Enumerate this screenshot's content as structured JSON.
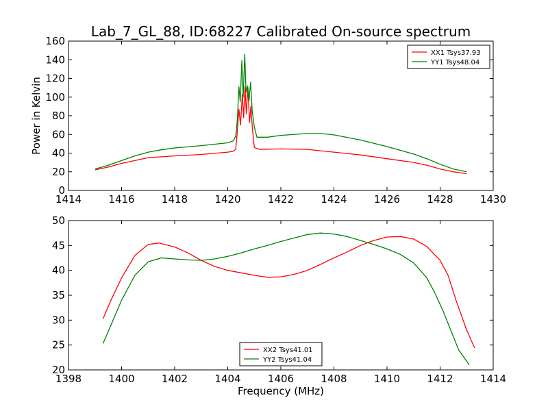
{
  "title": "Lab_7_GL_88, ID:68227 Calibrated On-source spectrum",
  "chart_data": [
    {
      "type": "line",
      "xlabel": "",
      "ylabel": "Power in Kelvin",
      "xlim": [
        1414,
        1430
      ],
      "ylim": [
        0,
        160
      ],
      "xticks": [
        1414,
        1416,
        1418,
        1420,
        1422,
        1424,
        1426,
        1428,
        1430
      ],
      "yticks": [
        0,
        20,
        40,
        60,
        80,
        100,
        120,
        140,
        160
      ],
      "legend_position": "top-right",
      "series": [
        {
          "name": "XX1 Tsys37.93",
          "color": "#ff0000",
          "points": [
            [
              1415,
              22
            ],
            [
              1415.5,
              25
            ],
            [
              1416,
              29
            ],
            [
              1416.5,
              32
            ],
            [
              1417,
              35
            ],
            [
              1417.5,
              36
            ],
            [
              1418,
              37
            ],
            [
              1419,
              38.5
            ],
            [
              1420,
              41
            ],
            [
              1420.2,
              42
            ],
            [
              1420.3,
              44
            ],
            [
              1420.35,
              60
            ],
            [
              1420.42,
              87
            ],
            [
              1420.48,
              70
            ],
            [
              1420.55,
              103
            ],
            [
              1420.6,
              78
            ],
            [
              1420.65,
              111
            ],
            [
              1420.7,
              82
            ],
            [
              1420.76,
              110
            ],
            [
              1420.82,
              73
            ],
            [
              1420.87,
              90
            ],
            [
              1420.93,
              66
            ],
            [
              1421,
              46
            ],
            [
              1421.2,
              44
            ],
            [
              1422,
              44.5
            ],
            [
              1423,
              44
            ],
            [
              1424,
              41
            ],
            [
              1425,
              38
            ],
            [
              1426,
              34
            ],
            [
              1427,
              30
            ],
            [
              1427.5,
              27
            ],
            [
              1428,
              23
            ],
            [
              1428.5,
              20
            ],
            [
              1429,
              18
            ]
          ]
        },
        {
          "name": "YY1 Tsys48.04",
          "color": "#008000",
          "points": [
            [
              1415,
              23
            ],
            [
              1415.5,
              27
            ],
            [
              1416,
              32
            ],
            [
              1416.5,
              37
            ],
            [
              1417,
              41
            ],
            [
              1417.5,
              43.5
            ],
            [
              1418,
              45.5
            ],
            [
              1419,
              48
            ],
            [
              1420,
              51
            ],
            [
              1420.2,
              53
            ],
            [
              1420.3,
              58
            ],
            [
              1420.36,
              75
            ],
            [
              1420.42,
              111
            ],
            [
              1420.47,
              95
            ],
            [
              1420.53,
              139
            ],
            [
              1420.58,
              100
            ],
            [
              1420.64,
              146
            ],
            [
              1420.69,
              105
            ],
            [
              1420.75,
              112
            ],
            [
              1420.8,
              96
            ],
            [
              1420.86,
              116
            ],
            [
              1420.92,
              85
            ],
            [
              1421,
              68
            ],
            [
              1421.1,
              57
            ],
            [
              1421.5,
              57
            ],
            [
              1422,
              59
            ],
            [
              1423,
              61
            ],
            [
              1423.5,
              61
            ],
            [
              1424,
              59.5
            ],
            [
              1425,
              54
            ],
            [
              1426,
              47
            ],
            [
              1427,
              39
            ],
            [
              1427.5,
              34
            ],
            [
              1428,
              28
            ],
            [
              1428.5,
              23
            ],
            [
              1429,
              20
            ]
          ]
        }
      ]
    },
    {
      "type": "line",
      "xlabel": "Frequency (MHz)",
      "ylabel": "",
      "xlim": [
        1398,
        1414
      ],
      "ylim": [
        20,
        50
      ],
      "xticks": [
        1398,
        1400,
        1402,
        1404,
        1406,
        1408,
        1410,
        1412,
        1414
      ],
      "yticks": [
        20,
        25,
        30,
        35,
        40,
        45,
        50
      ],
      "legend_position": "bottom-center",
      "series": [
        {
          "name": "XX2 Tsys41.01",
          "color": "#ff0000",
          "points": [
            [
              1399.3,
              30.3
            ],
            [
              1399.6,
              34
            ],
            [
              1400,
              38.5
            ],
            [
              1400.5,
              43
            ],
            [
              1401,
              45.2
            ],
            [
              1401.4,
              45.5
            ],
            [
              1402,
              44.7
            ],
            [
              1402.5,
              43.5
            ],
            [
              1403,
              42
            ],
            [
              1403.5,
              40.8
            ],
            [
              1404,
              40
            ],
            [
              1404.5,
              39.5
            ],
            [
              1405,
              39
            ],
            [
              1405.5,
              38.6
            ],
            [
              1406,
              38.7
            ],
            [
              1406.5,
              39.2
            ],
            [
              1407,
              40
            ],
            [
              1407.5,
              41.2
            ],
            [
              1408,
              42.5
            ],
            [
              1408.5,
              43.7
            ],
            [
              1409,
              45
            ],
            [
              1409.5,
              46
            ],
            [
              1410,
              46.7
            ],
            [
              1410.5,
              46.8
            ],
            [
              1411,
              46.3
            ],
            [
              1411.5,
              44.8
            ],
            [
              1412,
              42
            ],
            [
              1412.3,
              39
            ],
            [
              1412.6,
              34
            ],
            [
              1413,
              28
            ],
            [
              1413.3,
              24.4
            ]
          ]
        },
        {
          "name": "YY2 Tsys41.04",
          "color": "#008000",
          "points": [
            [
              1399.3,
              25.3
            ],
            [
              1399.6,
              29
            ],
            [
              1400,
              34
            ],
            [
              1400.5,
              39
            ],
            [
              1401,
              41.7
            ],
            [
              1401.5,
              42.5
            ],
            [
              1402,
              42.3
            ],
            [
              1402.5,
              42.1
            ],
            [
              1403,
              42
            ],
            [
              1403.5,
              42.3
            ],
            [
              1404,
              42.8
            ],
            [
              1404.5,
              43.5
            ],
            [
              1405,
              44.3
            ],
            [
              1405.5,
              45
            ],
            [
              1406,
              45.8
            ],
            [
              1406.5,
              46.5
            ],
            [
              1407,
              47.2
            ],
            [
              1407.5,
              47.5
            ],
            [
              1408,
              47.3
            ],
            [
              1408.5,
              46.8
            ],
            [
              1409,
              46
            ],
            [
              1409.5,
              45.2
            ],
            [
              1410,
              44.3
            ],
            [
              1410.5,
              43.2
            ],
            [
              1411,
              41.5
            ],
            [
              1411.5,
              38.5
            ],
            [
              1411.8,
              35.5
            ],
            [
              1412.1,
              32
            ],
            [
              1412.4,
              28
            ],
            [
              1412.7,
              24
            ],
            [
              1413.1,
              21
            ]
          ]
        }
      ]
    }
  ]
}
